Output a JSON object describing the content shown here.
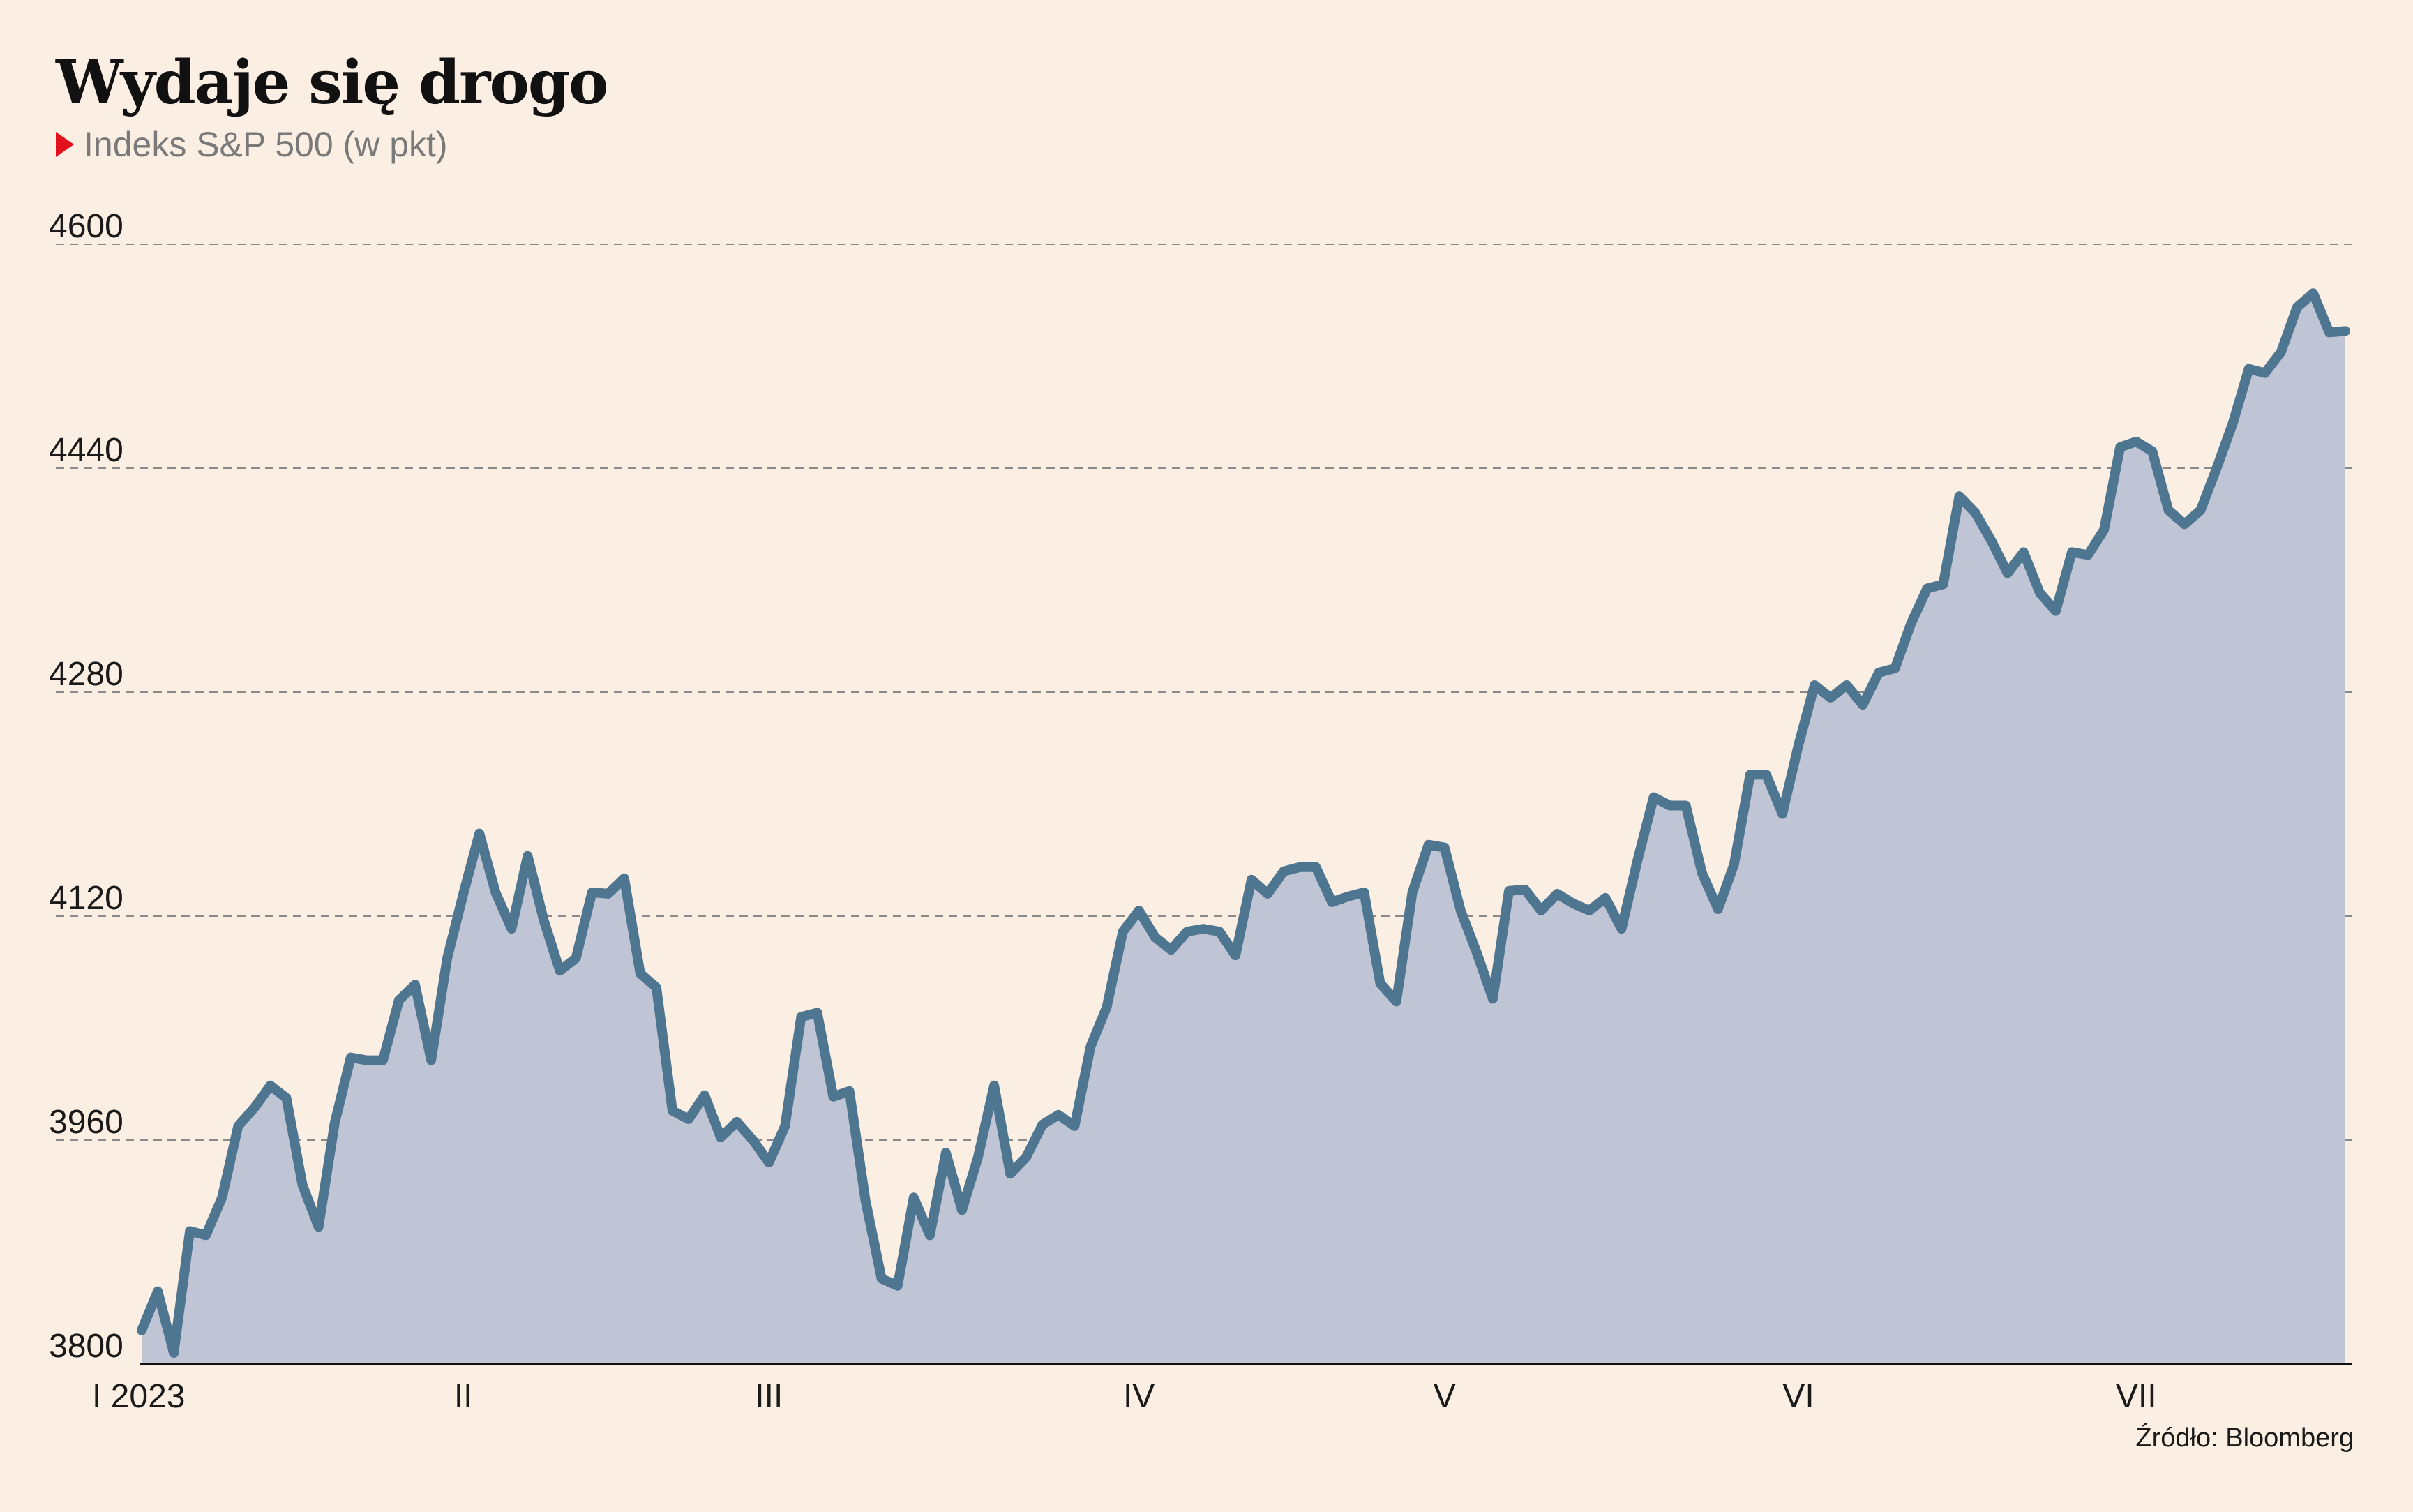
{
  "title": "Wydaje się drogo",
  "subtitle": "Indeks S&P 500 (w pkt)",
  "source": "Źródło: Bloomberg",
  "colors": {
    "background": "#fbeee2",
    "line": "#4f7690",
    "area": "#c0c5d5",
    "marker": "#e3101e",
    "grid": "#8a8a8a"
  },
  "chart_data": {
    "type": "area",
    "ylim": [
      3800,
      4600
    ],
    "yticks": [
      "3800",
      "3960",
      "4120",
      "4280",
      "4440",
      "4600"
    ],
    "xtick_labels": [
      "I 2023",
      "II",
      "III",
      "IV",
      "V",
      "VI",
      "VII"
    ],
    "xtick_index": [
      0,
      20,
      39,
      62,
      81,
      103,
      124
    ],
    "grid": "horizontal dashed",
    "series": [
      {
        "name": "",
        "values": [
          3824,
          3852,
          3808,
          3895,
          3892,
          3919,
          3970,
          3983,
          3999,
          3990,
          3928,
          3898,
          3972,
          4019,
          4017,
          4017,
          4060,
          4071,
          4017,
          4090,
          4136,
          4179,
          4137,
          4111,
          4163,
          4117,
          4081,
          4090,
          4137,
          4136,
          4147,
          4079,
          4069,
          3981,
          3975,
          3992,
          3962,
          3973,
          3960,
          3944,
          3970,
          4048,
          4051,
          3991,
          3995,
          3917,
          3861,
          3856,
          3919,
          3892,
          3951,
          3910,
          3948,
          3999,
          3936,
          3948,
          3971,
          3978,
          3970,
          4027,
          4055,
          4109,
          4124,
          4105,
          4096,
          4109,
          4111,
          4109,
          4092,
          4146,
          4136,
          4152,
          4155,
          4155,
          4130,
          4134,
          4137,
          4072,
          4059,
          4137,
          4171,
          4169,
          4124,
          4094,
          4061,
          4138,
          4139,
          4124,
          4136,
          4129,
          4124,
          4133,
          4111,
          4160,
          4205,
          4199,
          4199,
          4151,
          4125,
          4157,
          4221,
          4221,
          4193,
          4242,
          4285,
          4276,
          4285,
          4271,
          4294,
          4297,
          4329,
          4354,
          4357,
          4420,
          4408,
          4388,
          4365,
          4380,
          4351,
          4338,
          4380,
          4378,
          4396,
          4455,
          4459,
          4452,
          4410,
          4400,
          4410,
          4440,
          4472,
          4511,
          4508,
          4523,
          4555,
          4565,
          4537,
          4538
        ]
      }
    ]
  }
}
